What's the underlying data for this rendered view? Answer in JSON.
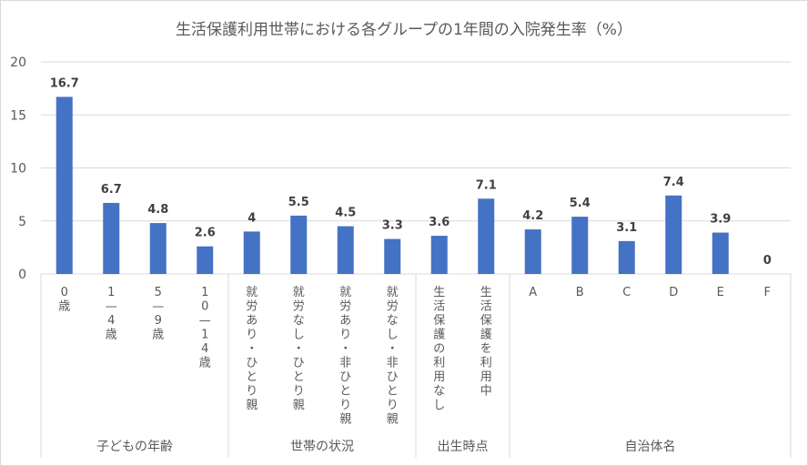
{
  "chart_data": {
    "type": "bar",
    "title": "生活保護利用世帯における各グループの1年間の入院発生率（%）",
    "xlabel": "",
    "ylabel": "",
    "ylim": [
      0,
      20
    ],
    "yticks": [
      "0",
      "5",
      "10",
      "15",
      "20"
    ],
    "grid": true,
    "legend": "none",
    "bar_color": "#4472c4",
    "categories": [
      "0歳",
      "1—4歳",
      "5—9歳",
      "10—14歳",
      "就労あり・ひとり親",
      "就労なし・ひとり親",
      "就労あり・非ひとり親",
      "就労なし・非ひとり親",
      "生活保護の利用なし",
      "生活保護を利用中",
      "A",
      "B",
      "C",
      "D",
      "E",
      "F"
    ],
    "values": [
      16.7,
      6.7,
      4.8,
      2.6,
      4,
      5.5,
      4.5,
      3.3,
      3.6,
      7.1,
      4.2,
      5.4,
      3.1,
      7.4,
      3.9,
      0
    ],
    "data_labels": [
      "16.7",
      "6.7",
      "4.8",
      "2.6",
      "4",
      "5.5",
      "4.5",
      "3.3",
      "3.6",
      "7.1",
      "4.2",
      "5.4",
      "3.1",
      "7.4",
      "3.9",
      "0"
    ],
    "groups": [
      {
        "label": "子どもの年齢",
        "count": 4
      },
      {
        "label": "世帯の状況",
        "count": 4
      },
      {
        "label": "出生時点",
        "count": 2
      },
      {
        "label": "自治体名",
        "count": 6
      }
    ]
  }
}
